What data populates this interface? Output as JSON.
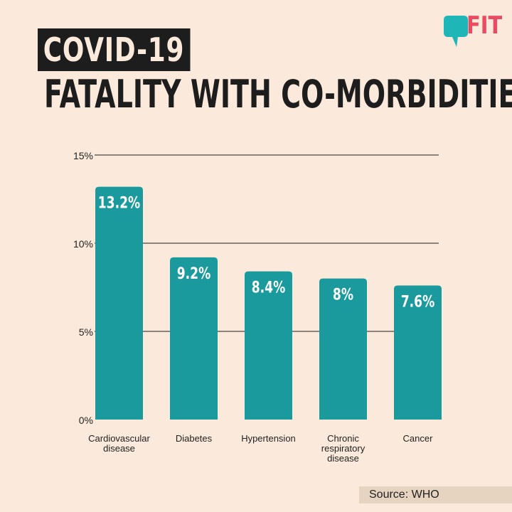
{
  "header": {
    "title_line1": "COVID-19",
    "title_line2": "FATALITY WITH CO-MORBIDITIES"
  },
  "logo": {
    "text": "FIT",
    "icon": "speech-bubble-logo-icon",
    "color": "#1fb6b8",
    "text_color": "#e94c62"
  },
  "source": "Source: WHO",
  "colors": {
    "bar": "#1a9a9c",
    "background": "#fbeadb",
    "grid": "#1d1d1d",
    "title_box": "#1d1d1d"
  },
  "chart_data": {
    "type": "bar",
    "title": "",
    "xlabel": "",
    "ylabel": "",
    "categories": [
      [
        "Cardiovascular",
        "disease"
      ],
      [
        "Diabetes"
      ],
      [
        "Hypertension"
      ],
      [
        "Chronic",
        "respiratory",
        "disease"
      ],
      [
        "Cancer"
      ]
    ],
    "values": [
      13.2,
      9.2,
      8.4,
      8,
      7.6
    ],
    "value_labels": [
      "13.2%",
      "9.2%",
      "8.4%",
      "8%",
      "7.6%"
    ],
    "ylim": [
      0,
      15
    ],
    "yticks": [
      0,
      5,
      10,
      15
    ],
    "ytick_labels": [
      "0%",
      "5%",
      "10%",
      "15%"
    ],
    "grid": true,
    "legend": "none"
  }
}
